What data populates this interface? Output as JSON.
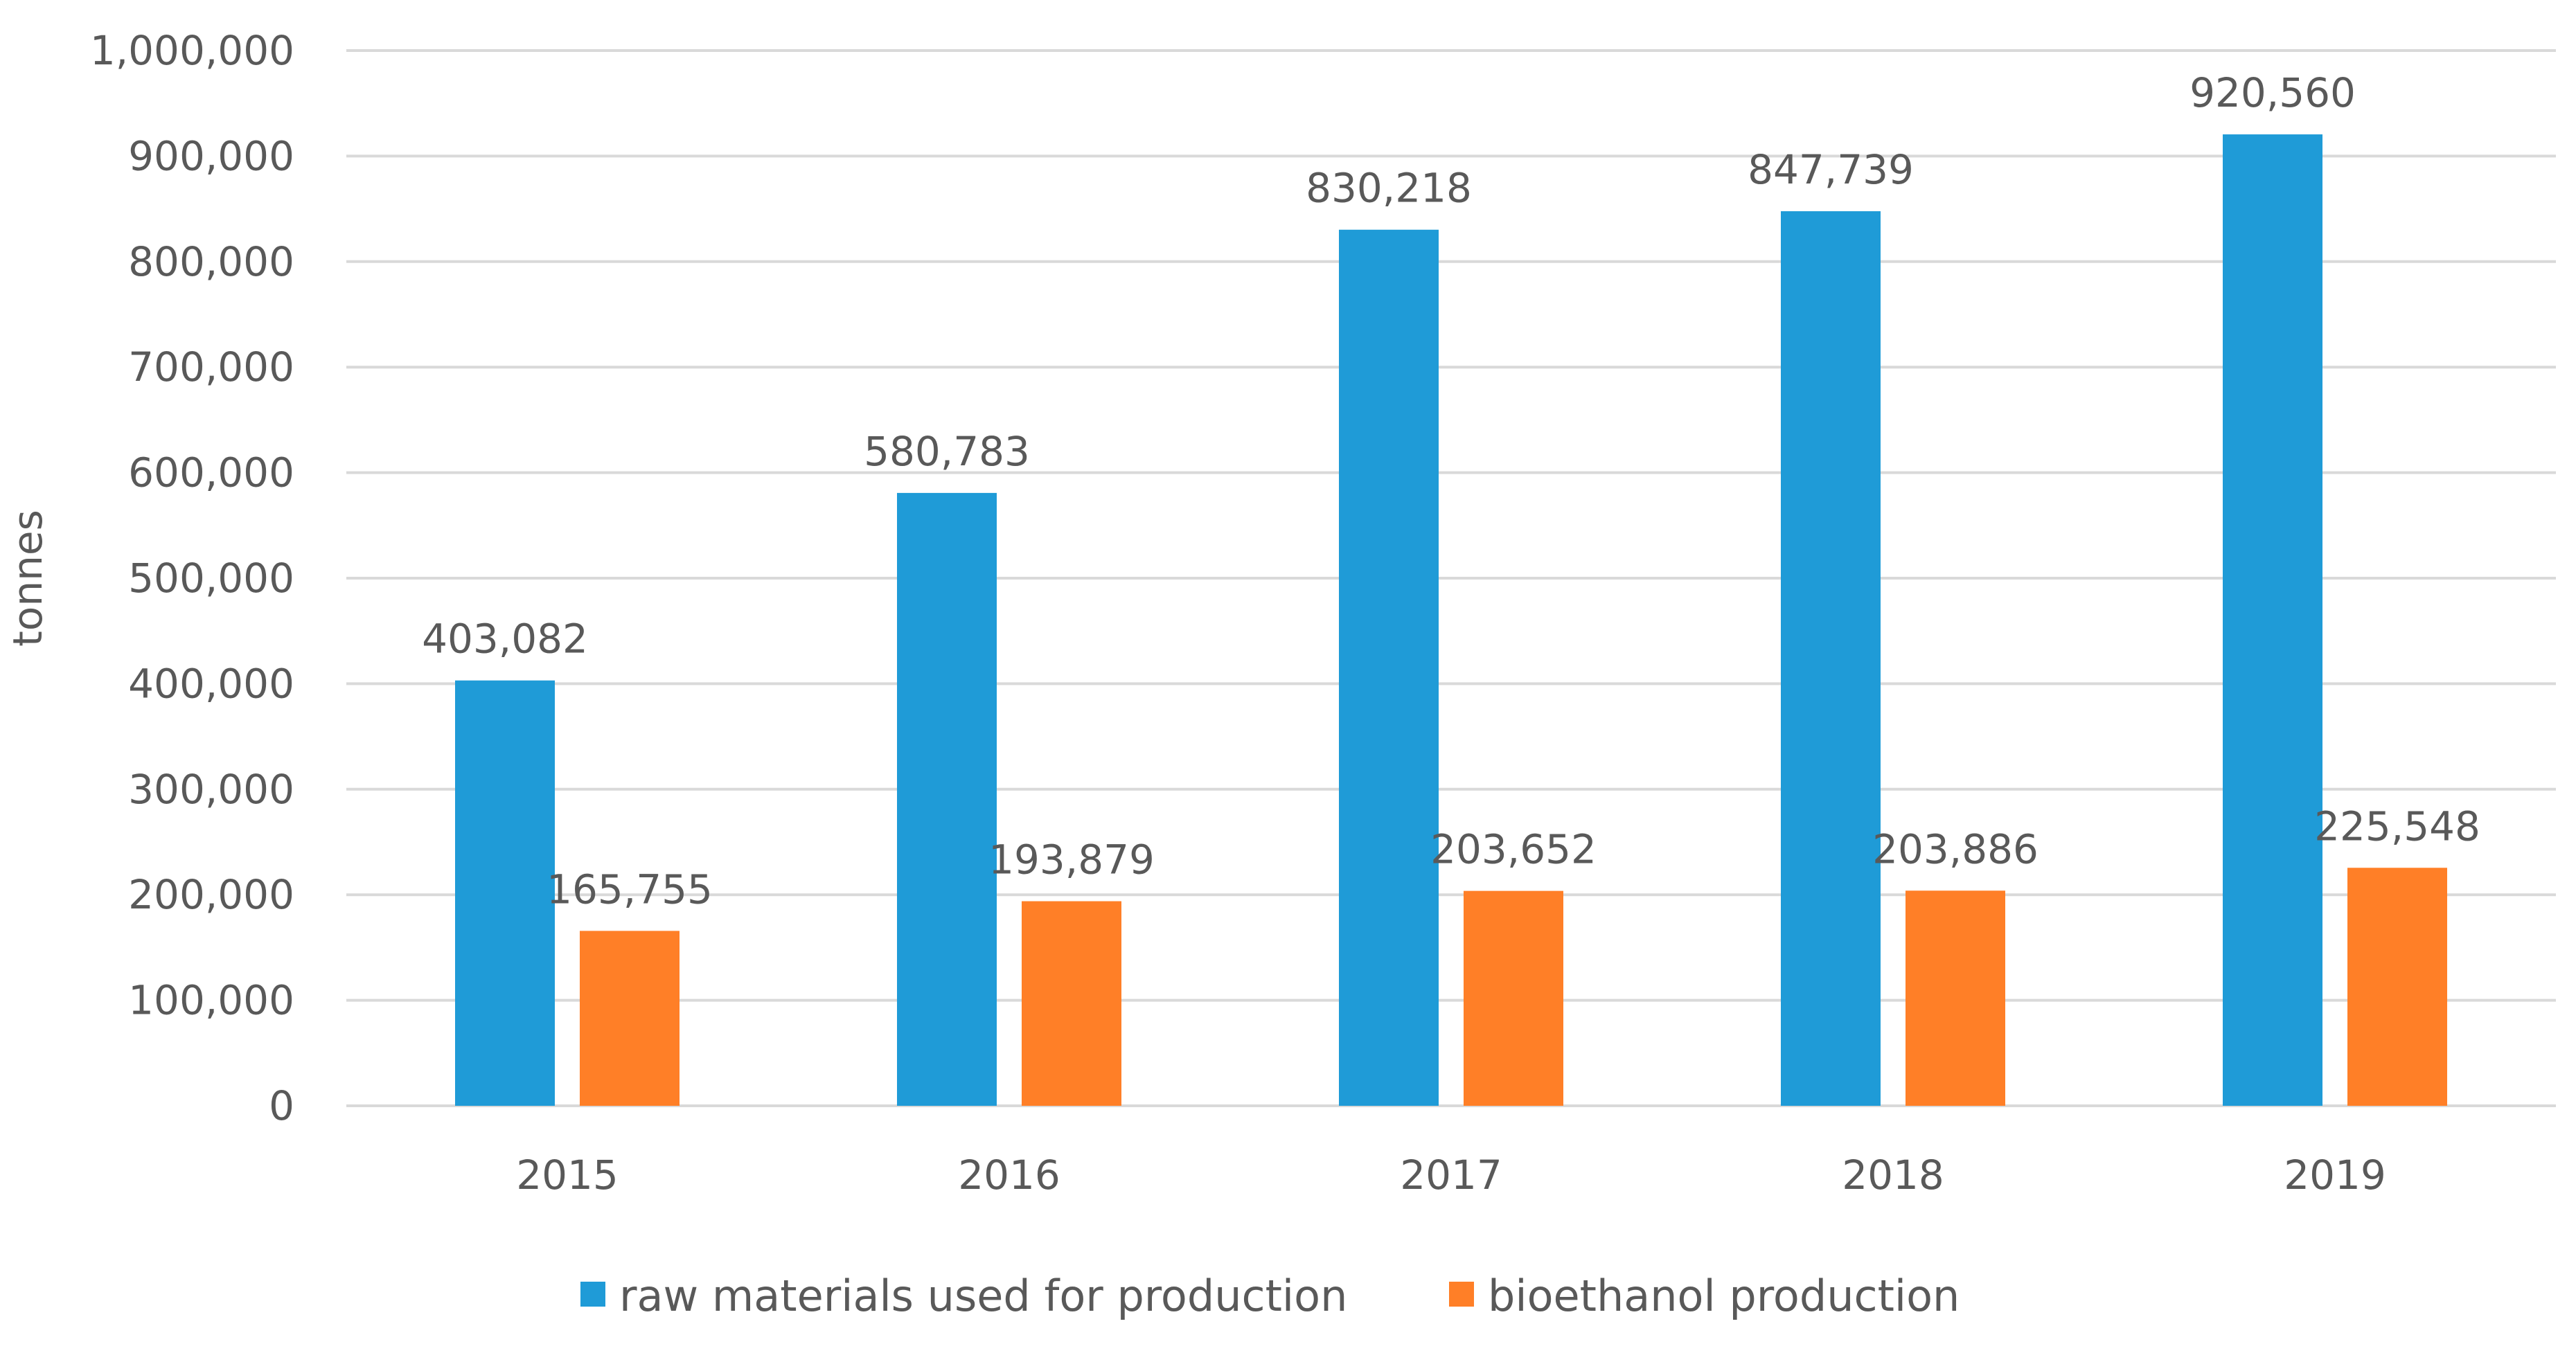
{
  "chart_data": {
    "type": "bar",
    "title": "",
    "xlabel": "",
    "ylabel": "tonnes",
    "ylim": [
      0,
      1000000
    ],
    "yticks": [
      "0",
      "100,000",
      "200,000",
      "300,000",
      "400,000",
      "500,000",
      "600,000",
      "700,000",
      "800,000",
      "900,000",
      "1,000,000"
    ],
    "categories": [
      "2015",
      "2016",
      "2017",
      "2018",
      "2019"
    ],
    "series": [
      {
        "name": "raw materials used for production",
        "color": "#1F9BD7",
        "values": [
          403082,
          580783,
          830218,
          847739,
          920560
        ],
        "labels": [
          "403,082",
          "580,783",
          "830,218",
          "847,739",
          "920,560"
        ]
      },
      {
        "name": "bioethanol production",
        "color": "#FF7F27",
        "values": [
          165755,
          193879,
          203652,
          203886,
          225548
        ],
        "labels": [
          "165,755",
          "193,879",
          "203,652",
          "203,886",
          "225,548"
        ]
      }
    ],
    "grid": true,
    "legend_position": "bottom"
  }
}
